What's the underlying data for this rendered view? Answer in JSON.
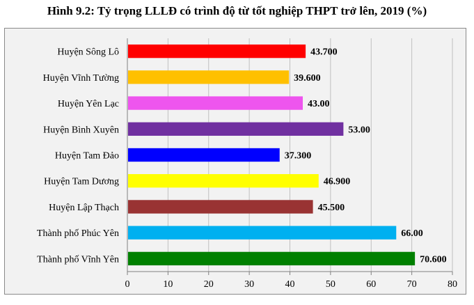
{
  "title": "Hình 9.2: Tỷ trọng LLLĐ có trình độ từ tốt nghiệp THPT trở lên, 2019 (%)",
  "chart_data": {
    "type": "bar",
    "orientation": "horizontal",
    "categories": [
      "Huyện Sông Lô",
      "Huyện Vĩnh Tường",
      "Huyện Yên Lạc",
      "Huyện Bình Xuyên",
      "Huyện Tam Đảo",
      "Huyện Tam Dương",
      "Huyện Lập Thạch",
      "Thành phố Phúc Yên",
      "Thành phố Vĩnh Yên"
    ],
    "values": [
      43.7,
      39.6,
      43.0,
      53.0,
      37.3,
      46.9,
      45.5,
      66.0,
      70.6
    ],
    "value_labels": [
      "43.700",
      "39.600",
      "43.00",
      "53.00",
      "37.300",
      "46.900",
      "45.500",
      "66.00",
      "70.600"
    ],
    "colors": [
      "#ff0000",
      "#ffc000",
      "#ee55ee",
      "#7030a0",
      "#0000ff",
      "#ffff00",
      "#993333",
      "#00b0f0",
      "#008000"
    ],
    "xlim": [
      0,
      80
    ],
    "xticks": [
      0,
      10,
      20,
      30,
      40,
      50,
      60,
      70,
      80
    ],
    "grid": true,
    "legend": "none"
  }
}
